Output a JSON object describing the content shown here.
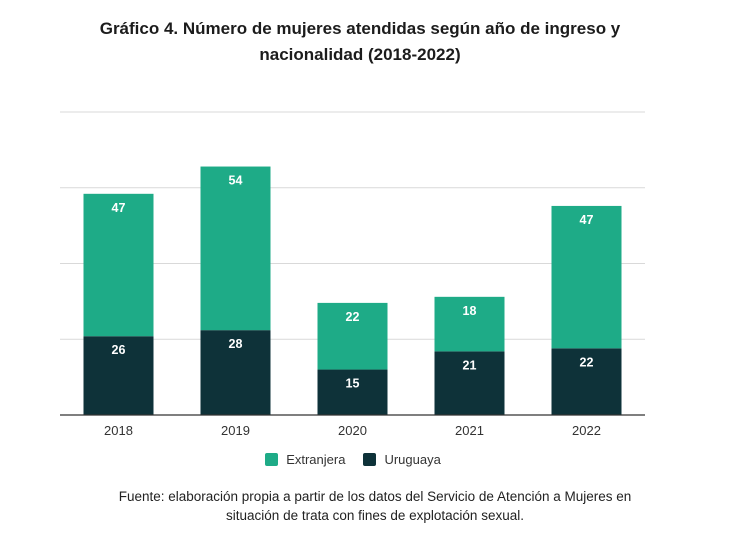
{
  "title": {
    "line1": "Gráfico 4. Número de mujeres atendidas según año de ingreso y",
    "line2": "nacionalidad (2018-2022)"
  },
  "colors": {
    "extranjera": "#1eab87",
    "uruguaya": "#0e3239",
    "grid": "#d9d9d9",
    "axis": "#333333",
    "label_text": "#ffffff"
  },
  "legend": [
    {
      "name": "Extranjera",
      "color_key": "extranjera"
    },
    {
      "name": "Uruguaya",
      "color_key": "uruguaya"
    }
  ],
  "chart_data": {
    "type": "bar",
    "stacked": true,
    "categories": [
      "2018",
      "2019",
      "2020",
      "2021",
      "2022"
    ],
    "series": [
      {
        "name": "Uruguaya",
        "values": [
          26,
          28,
          15,
          21,
          22
        ]
      },
      {
        "name": "Extranjera",
        "values": [
          47,
          54,
          22,
          18,
          47
        ]
      }
    ],
    "ylim": [
      0,
      100
    ],
    "ygrid_step": 25,
    "grid": true,
    "legend_position": "bottom"
  },
  "source": {
    "line1": "Fuente: elaboración propia a partir de los datos del Servicio de Atención a Mujeres en",
    "line2": "situación de trata con fines de explotación sexual."
  }
}
